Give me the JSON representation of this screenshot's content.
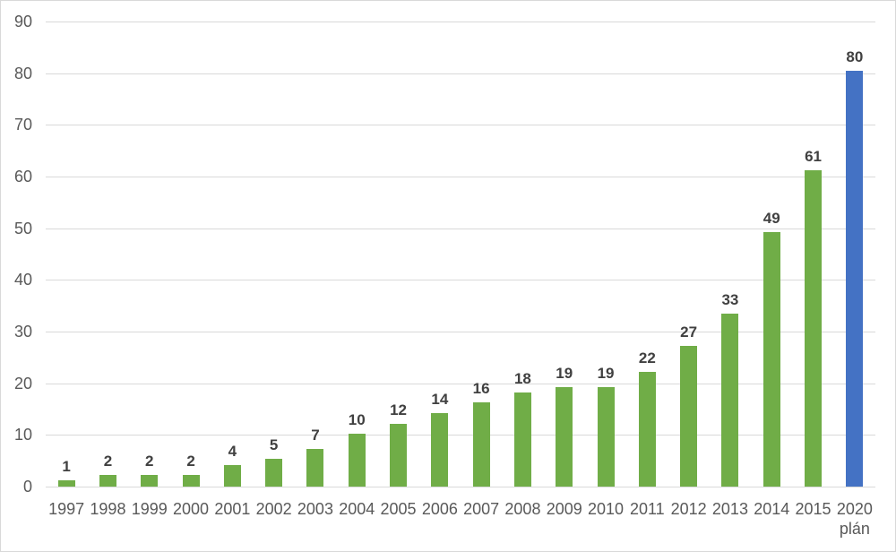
{
  "chart_data": {
    "type": "bar",
    "title": "",
    "xlabel": "",
    "ylabel": "",
    "categories": [
      "1997",
      "1998",
      "1999",
      "2000",
      "2001",
      "2002",
      "2003",
      "2004",
      "2005",
      "2006",
      "2007",
      "2008",
      "2009",
      "2010",
      "2011",
      "2012",
      "2013",
      "2014",
      "2015",
      "2020 plán"
    ],
    "category_label_lines": [
      [
        "1997"
      ],
      [
        "1998"
      ],
      [
        "1999"
      ],
      [
        "2000"
      ],
      [
        "2001"
      ],
      [
        "2002"
      ],
      [
        "2003"
      ],
      [
        "2004"
      ],
      [
        "2005"
      ],
      [
        "2006"
      ],
      [
        "2007"
      ],
      [
        "2008"
      ],
      [
        "2009"
      ],
      [
        "2010"
      ],
      [
        "2011"
      ],
      [
        "2012"
      ],
      [
        "2013"
      ],
      [
        "2014"
      ],
      [
        "2015"
      ],
      [
        "2020",
        "plán"
      ]
    ],
    "values": [
      1,
      2,
      2,
      2,
      4,
      5,
      7,
      10,
      12,
      14,
      16,
      18,
      19,
      19,
      22,
      27,
      33,
      49,
      61,
      80
    ],
    "data_labels": [
      "1",
      "2",
      "2",
      "2",
      "4",
      "5",
      "7",
      "10",
      "12",
      "14",
      "16",
      "18",
      "19",
      "19",
      "22",
      "27",
      "33",
      "49",
      "61",
      "80"
    ],
    "estimated_bar_heights": [
      1.3,
      2.3,
      2.3,
      2.3,
      4.2,
      5.3,
      7.3,
      10.3,
      12.2,
      14.3,
      16.3,
      18.2,
      19.3,
      19.3,
      22.2,
      27.3,
      33.4,
      49.3,
      61.2,
      80.4
    ],
    "ylim": [
      0,
      90
    ],
    "y_ticks": [
      0,
      10,
      20,
      30,
      40,
      50,
      60,
      70,
      80,
      90
    ],
    "grid": true,
    "legend": false,
    "colors": {
      "bar_default": "#70AD47",
      "bar_highlight": "#4472C4",
      "highlight_index": 19,
      "gridline": "#D9D9D9",
      "axis_line": "#D9D9D9",
      "tick_label": "#595959",
      "data_label": "#404040",
      "background": "#FFFFFF",
      "border": "#D9D9D9"
    }
  }
}
